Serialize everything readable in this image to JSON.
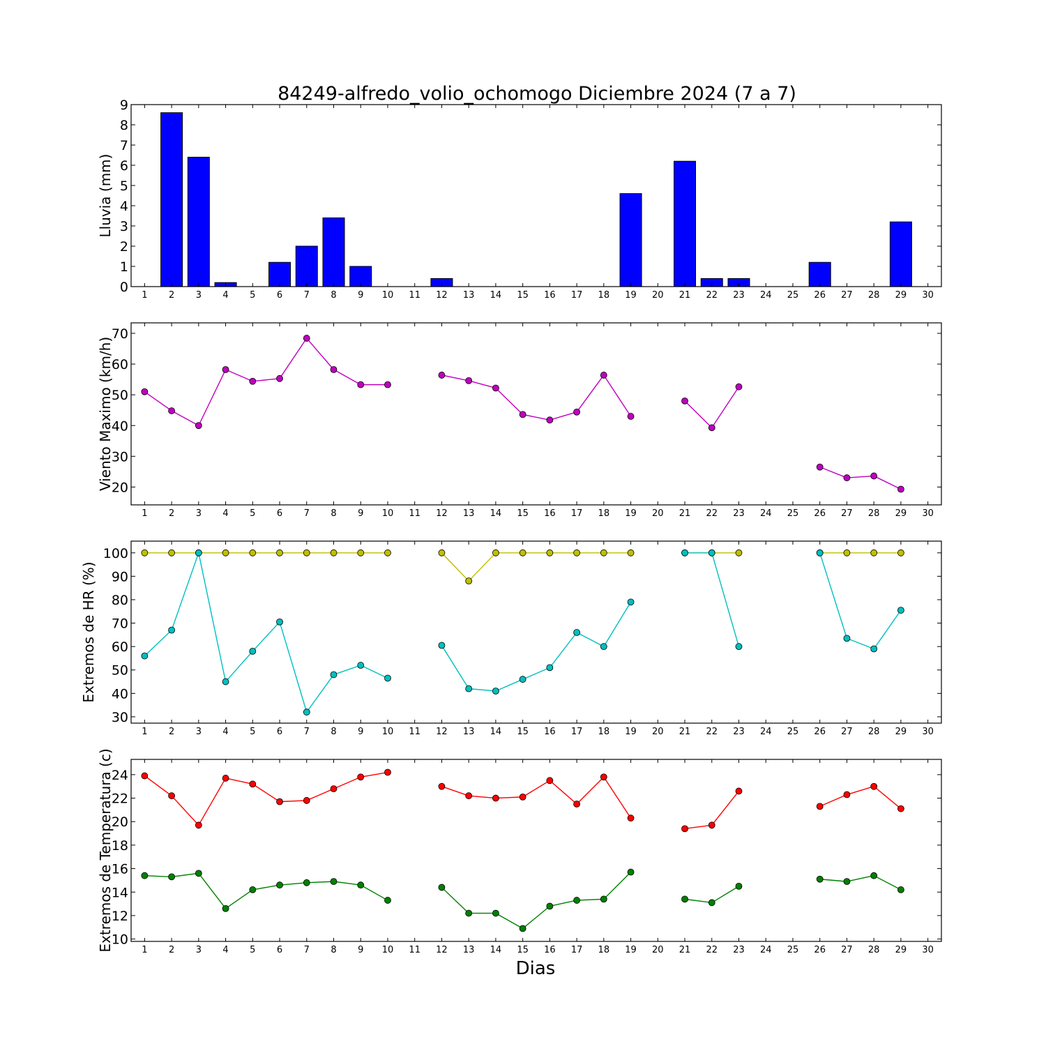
{
  "figure": {
    "title": "84249-alfredo_volio_ochomogo Diciembre 2024  (7 a 7)",
    "xlabel": "Dias"
  },
  "chart_data": [
    {
      "type": "bar",
      "ylabel": "Lluvia (mm)",
      "xlim": [
        0.5,
        30.5
      ],
      "ylim": [
        0,
        9
      ],
      "yticks": [
        0,
        1,
        2,
        3,
        4,
        5,
        6,
        7,
        8,
        9
      ],
      "categories": [
        1,
        2,
        3,
        4,
        5,
        6,
        7,
        8,
        9,
        10,
        11,
        12,
        13,
        14,
        15,
        16,
        17,
        18,
        19,
        20,
        21,
        22,
        23,
        24,
        25,
        26,
        27,
        28,
        29,
        30
      ],
      "series": [
        {
          "color": "#0000ff",
          "values": [
            0,
            8.6,
            6.4,
            0.2,
            0,
            1.2,
            2.0,
            3.4,
            1.0,
            0,
            0,
            0.4,
            0,
            0,
            0,
            0,
            0,
            0,
            4.6,
            0,
            6.2,
            0.4,
            0.4,
            0,
            0,
            1.2,
            0,
            0,
            3.2,
            0
          ]
        }
      ]
    },
    {
      "type": "line",
      "ylabel": "Viento Maximo (km/h)",
      "xlim": [
        0.5,
        30.5
      ],
      "ylim": [
        14.2,
        73.4
      ],
      "yticks": [
        20,
        30,
        40,
        50,
        60,
        70
      ],
      "x": [
        1,
        2,
        3,
        4,
        5,
        6,
        7,
        8,
        9,
        10,
        11,
        12,
        13,
        14,
        15,
        16,
        17,
        18,
        19,
        20,
        21,
        22,
        23,
        24,
        25,
        26,
        27,
        28,
        29,
        30
      ],
      "series": [
        {
          "color": "#bf00bf",
          "values": [
            51.0,
            44.8,
            40.0,
            58.2,
            54.4,
            55.3,
            68.4,
            58.2,
            53.3,
            53.3,
            null,
            56.4,
            54.6,
            52.2,
            43.6,
            41.8,
            44.4,
            56.4,
            43.0,
            null,
            48.0,
            39.3,
            52.6,
            null,
            null,
            26.5,
            23.0,
            23.6,
            19.3,
            null
          ]
        }
      ]
    },
    {
      "type": "line",
      "ylabel": "Extremos de HR (%)",
      "xlim": [
        0.5,
        30.5
      ],
      "ylim": [
        27.3,
        105
      ],
      "yticks": [
        30,
        40,
        50,
        60,
        70,
        80,
        90,
        100
      ],
      "x": [
        1,
        2,
        3,
        4,
        5,
        6,
        7,
        8,
        9,
        10,
        11,
        12,
        13,
        14,
        15,
        16,
        17,
        18,
        19,
        20,
        21,
        22,
        23,
        24,
        25,
        26,
        27,
        28,
        29,
        30
      ],
      "series": [
        {
          "color": "#bfbf00",
          "values": [
            100,
            100,
            100,
            100,
            100,
            100,
            100,
            100,
            100,
            100,
            null,
            100,
            88,
            100,
            100,
            100,
            100,
            100,
            100,
            null,
            100,
            100,
            100,
            null,
            null,
            100,
            100,
            100,
            100,
            null
          ]
        },
        {
          "color": "#00bfbf",
          "values": [
            56,
            67,
            100,
            45,
            58,
            70.5,
            32,
            48,
            52,
            46.5,
            null,
            60.5,
            42,
            41,
            46,
            51,
            66,
            60,
            79,
            null,
            100,
            100,
            60,
            null,
            null,
            100,
            63.5,
            59,
            75.5,
            null
          ]
        }
      ]
    },
    {
      "type": "line",
      "ylabel": "Extremos de Temperatura (c)",
      "xlim": [
        0.5,
        30.5
      ],
      "ylim": [
        9.8,
        25.3
      ],
      "yticks": [
        10,
        12,
        14,
        16,
        18,
        20,
        22,
        24
      ],
      "x": [
        1,
        2,
        3,
        4,
        5,
        6,
        7,
        8,
        9,
        10,
        11,
        12,
        13,
        14,
        15,
        16,
        17,
        18,
        19,
        20,
        21,
        22,
        23,
        24,
        25,
        26,
        27,
        28,
        29,
        30
      ],
      "series": [
        {
          "color": "#ff0000",
          "values": [
            23.9,
            22.2,
            19.7,
            23.7,
            23.2,
            21.7,
            21.8,
            22.8,
            23.8,
            24.2,
            null,
            23.0,
            22.2,
            22.0,
            22.1,
            23.5,
            21.5,
            23.8,
            20.3,
            null,
            19.4,
            19.7,
            22.6,
            null,
            null,
            21.3,
            22.3,
            23.0,
            21.1,
            null
          ]
        },
        {
          "color": "#008000",
          "values": [
            15.4,
            15.3,
            15.6,
            12.6,
            14.2,
            14.6,
            14.8,
            14.9,
            14.6,
            13.3,
            null,
            14.4,
            12.2,
            12.2,
            10.9,
            12.8,
            13.3,
            13.4,
            15.7,
            null,
            13.4,
            13.1,
            14.5,
            null,
            null,
            15.1,
            14.9,
            15.4,
            14.2,
            null
          ]
        }
      ]
    }
  ]
}
